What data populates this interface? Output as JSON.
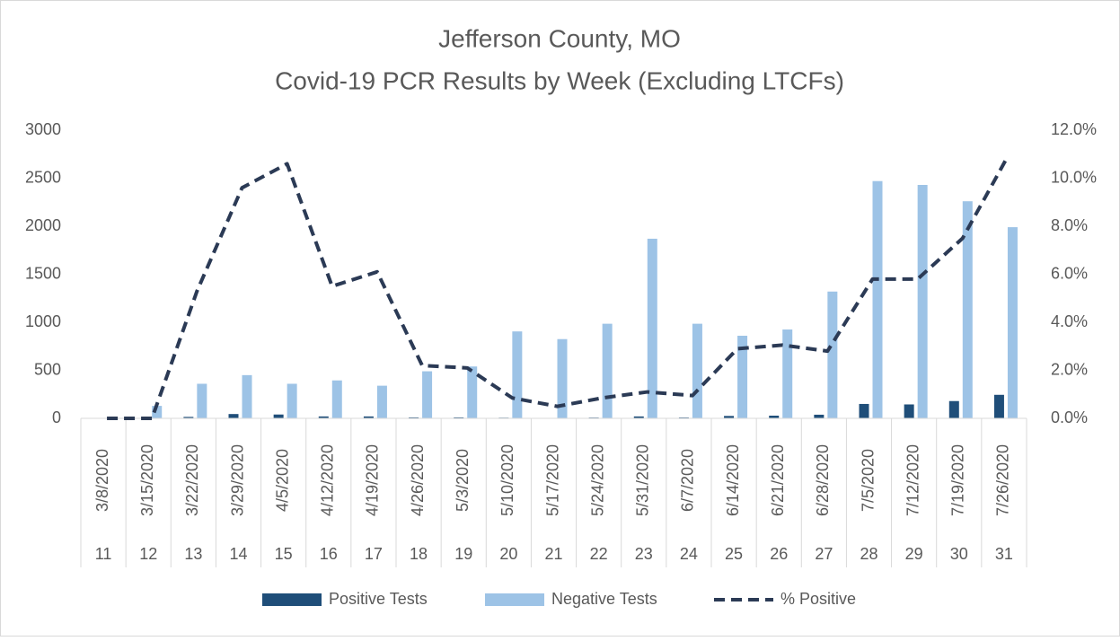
{
  "chart_data": {
    "type": "bar-line",
    "title": "Jefferson County, MO",
    "subtitle": "Covid-19 PCR Results by Week (Excluding LTCFs)",
    "categories": [
      "3/8/2020",
      "3/15/2020",
      "3/22/2020",
      "3/29/2020",
      "4/5/2020",
      "4/12/2020",
      "4/19/2020",
      "4/26/2020",
      "5/3/2020",
      "5/10/2020",
      "5/17/2020",
      "5/24/2020",
      "5/31/2020",
      "6/7/2020",
      "6/14/2020",
      "6/21/2020",
      "6/28/2020",
      "7/5/2020",
      "7/12/2020",
      "7/19/2020",
      "7/26/2020"
    ],
    "weeks": [
      11,
      12,
      13,
      14,
      15,
      16,
      17,
      18,
      19,
      20,
      21,
      22,
      23,
      24,
      25,
      26,
      27,
      28,
      29,
      30,
      31
    ],
    "series": [
      {
        "name": "Positive Tests",
        "type": "bar",
        "color": "#1f4e79",
        "values": [
          0,
          0,
          15,
          45,
          40,
          20,
          20,
          10,
          10,
          7,
          4,
          8,
          20,
          9,
          25,
          28,
          38,
          150,
          145,
          180,
          245
        ]
      },
      {
        "name": "Negative Tests",
        "type": "bar",
        "color": "#9dc3e6",
        "values": [
          0,
          130,
          360,
          450,
          360,
          395,
          340,
          490,
          540,
          905,
          825,
          985,
          1870,
          985,
          860,
          925,
          1320,
          2470,
          2430,
          2260,
          1990
        ]
      },
      {
        "name": "% Positive",
        "type": "line",
        "axis": "y2",
        "color": "#2b3a55",
        "dashed": true,
        "values": [
          0,
          0,
          5.3,
          9.6,
          10.6,
          5.5,
          6.1,
          2.2,
          2.1,
          0.85,
          0.5,
          0.85,
          1.1,
          0.95,
          2.9,
          3.05,
          2.8,
          5.8,
          5.8,
          7.5,
          10.9
        ]
      }
    ],
    "ylim": [
      0,
      3000
    ],
    "yticks": [
      0,
      500,
      1000,
      1500,
      2000,
      2500,
      3000
    ],
    "y2lim": [
      0,
      12
    ],
    "y2ticks": [
      {
        "value": 0,
        "label": "0.0%"
      },
      {
        "value": 2,
        "label": "2.0%"
      },
      {
        "value": 4,
        "label": "4.0%"
      },
      {
        "value": 6,
        "label": "6.0%"
      },
      {
        "value": 8,
        "label": "8.0%"
      },
      {
        "value": 10,
        "label": "10.0%"
      },
      {
        "value": 12,
        "label": "12.0%"
      }
    ],
    "grid": false,
    "legend": "bottom"
  }
}
